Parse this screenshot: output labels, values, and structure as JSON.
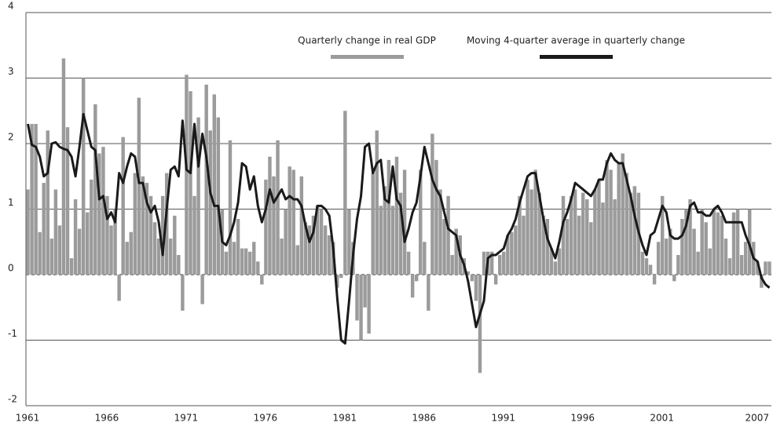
{
  "chart_data": {
    "type": "bar",
    "categories": [
      "1961",
      null,
      null,
      null,
      null,
      null,
      null,
      null,
      null,
      null,
      null,
      null,
      null,
      null,
      null,
      null,
      null,
      null,
      null,
      null,
      "1966",
      null,
      null,
      null,
      null,
      null,
      null,
      null,
      null,
      null,
      null,
      null,
      null,
      null,
      null,
      null,
      null,
      null,
      null,
      null,
      "1971",
      null,
      null,
      null,
      null,
      null,
      null,
      null,
      null,
      null,
      null,
      null,
      null,
      null,
      null,
      null,
      null,
      null,
      null,
      null,
      "1976",
      null,
      null,
      null,
      null,
      null,
      null,
      null,
      null,
      null,
      null,
      null,
      null,
      null,
      null,
      null,
      null,
      null,
      null,
      null,
      "1981",
      null,
      null,
      null,
      null,
      null,
      null,
      null,
      null,
      null,
      null,
      null,
      null,
      null,
      null,
      null,
      null,
      null,
      null,
      null,
      "1986",
      null,
      null,
      null,
      null,
      null,
      null,
      null,
      null,
      null,
      null,
      null,
      null,
      null,
      null,
      null,
      null,
      null,
      null,
      null,
      "1991",
      null,
      null,
      null,
      null,
      null,
      null,
      null,
      null,
      null,
      null,
      null,
      null,
      null,
      null,
      null,
      null,
      null,
      null,
      null,
      "1996",
      null,
      null,
      null,
      null,
      null,
      null,
      null,
      null,
      null,
      null,
      null,
      null,
      null,
      null,
      null,
      null,
      null,
      null,
      null,
      "2001",
      null,
      null,
      null,
      null,
      null,
      null,
      null,
      null,
      null,
      null,
      null,
      null,
      null,
      null,
      null,
      null,
      null,
      null,
      null,
      null,
      null,
      null,
      null,
      "2007",
      null,
      null,
      null
    ],
    "series": [
      {
        "name": "Quarterly change in real GDP",
        "type": "bar",
        "color": "#9b9b9b",
        "values": [
          1.3,
          2.3,
          2.3,
          0.65,
          1.4,
          2.2,
          0.55,
          1.3,
          0.75,
          3.3,
          2.25,
          0.25,
          1.15,
          0.7,
          3.0,
          0.95,
          1.45,
          2.6,
          1.85,
          1.95,
          1.2,
          0.75,
          1.0,
          -0.4,
          2.1,
          0.5,
          0.65,
          1.55,
          2.7,
          1.5,
          1.4,
          1.2,
          0.8,
          0.55,
          1.2,
          1.55,
          0.55,
          0.9,
          0.3,
          -0.55,
          3.05,
          2.8,
          1.2,
          2.4,
          -0.45,
          2.9,
          2.2,
          2.75,
          2.4,
          1.0,
          0.35,
          2.05,
          0.5,
          0.85,
          0.4,
          0.4,
          0.35,
          0.5,
          0.2,
          -0.15,
          1.45,
          1.8,
          1.5,
          2.05,
          0.55,
          1.0,
          1.65,
          1.6,
          0.45,
          1.5,
          0.8,
          0.75,
          0.9,
          1.05,
          1.0,
          0.75,
          0.6,
          0.5,
          -0.2,
          -0.05,
          2.5,
          1.0,
          0.5,
          -0.7,
          -1.0,
          -0.5,
          -0.9,
          1.55,
          2.2,
          1.05,
          1.35,
          1.75,
          1.05,
          1.8,
          1.25,
          1.6,
          0.35,
          -0.35,
          -0.1,
          1.6,
          0.5,
          -0.55,
          2.15,
          1.75,
          1.3,
          0.85,
          1.2,
          0.3,
          0.7,
          0.6,
          0.25,
          0.05,
          -0.1,
          -0.4,
          -1.5,
          0.35,
          0.35,
          0.35,
          -0.15,
          0.3,
          0.35,
          0.6,
          0.65,
          0.75,
          1.2,
          0.9,
          1.45,
          1.3,
          1.6,
          1.25,
          0.9,
          0.85,
          0.4,
          0.2,
          0.4,
          1.2,
          0.85,
          1.2,
          1.3,
          0.9,
          1.25,
          1.15,
          0.8,
          1.3,
          1.45,
          1.1,
          1.75,
          1.6,
          1.15,
          1.7,
          1.85,
          1.55,
          1.25,
          1.35,
          1.25,
          0.35,
          0.25,
          0.15,
          -0.15,
          0.5,
          1.2,
          0.55,
          0.7,
          -0.1,
          0.3,
          0.85,
          1.0,
          1.15,
          0.7,
          0.35,
          1.0,
          0.8,
          0.4,
          1.0,
          0.95,
          0.9,
          0.55,
          0.25,
          0.95,
          1.0,
          0.3,
          0.5,
          1.0,
          0.5,
          0.2,
          -0.2,
          0.2,
          0.2
        ]
      },
      {
        "name": "Moving 4-quarter average in quarterly change",
        "type": "line",
        "color": "#1a1a1a",
        "values": [
          2.3,
          1.98,
          1.95,
          1.8,
          1.5,
          1.55,
          2.0,
          2.02,
          1.95,
          1.92,
          1.9,
          1.8,
          1.5,
          1.95,
          2.45,
          2.2,
          1.95,
          1.9,
          1.15,
          1.2,
          0.85,
          0.95,
          0.8,
          1.55,
          1.4,
          1.65,
          1.85,
          1.8,
          1.4,
          1.4,
          1.1,
          0.95,
          1.05,
          0.8,
          0.3,
          1.0,
          1.6,
          1.65,
          1.5,
          2.35,
          1.6,
          1.55,
          2.3,
          1.65,
          2.15,
          1.8,
          1.25,
          1.05,
          1.05,
          0.5,
          0.45,
          0.6,
          0.8,
          1.1,
          1.7,
          1.65,
          1.3,
          1.5,
          1.05,
          0.8,
          1.0,
          1.3,
          1.1,
          1.2,
          1.3,
          1.15,
          1.2,
          1.15,
          1.15,
          1.05,
          0.75,
          0.5,
          0.65,
          1.05,
          1.05,
          1.0,
          0.9,
          0.4,
          -0.35,
          -1.0,
          -1.05,
          -0.4,
          0.3,
          0.85,
          1.2,
          1.95,
          2.0,
          1.55,
          1.7,
          1.75,
          1.15,
          1.1,
          1.65,
          1.15,
          1.05,
          0.5,
          0.7,
          0.95,
          1.1,
          1.5,
          1.95,
          1.7,
          1.45,
          1.3,
          1.2,
          0.95,
          0.7,
          0.65,
          0.6,
          0.3,
          0.15,
          -0.1,
          -0.45,
          -0.8,
          -0.6,
          -0.4,
          0.25,
          0.3,
          0.3,
          0.35,
          0.4,
          0.6,
          0.7,
          0.85,
          1.1,
          1.3,
          1.5,
          1.55,
          1.55,
          1.2,
          0.85,
          0.55,
          0.4,
          0.25,
          0.5,
          0.8,
          0.95,
          1.15,
          1.4,
          1.35,
          1.3,
          1.25,
          1.2,
          1.3,
          1.45,
          1.45,
          1.7,
          1.85,
          1.75,
          1.7,
          1.7,
          1.45,
          1.2,
          0.9,
          0.65,
          0.45,
          0.3,
          0.6,
          0.65,
          0.85,
          1.05,
          0.95,
          0.6,
          0.55,
          0.55,
          0.6,
          0.75,
          1.05,
          1.1,
          0.95,
          0.95,
          0.9,
          0.9,
          1.0,
          1.05,
          0.95,
          0.8,
          0.8,
          0.8,
          0.8,
          0.8,
          0.6,
          0.45,
          0.25,
          0.2,
          -0.05,
          -0.15,
          -0.2
        ]
      }
    ],
    "ylim": [
      -2,
      4
    ],
    "yticks": [
      -2,
      -1,
      0,
      1,
      2,
      3,
      4
    ],
    "grid": true,
    "legend": "top"
  }
}
